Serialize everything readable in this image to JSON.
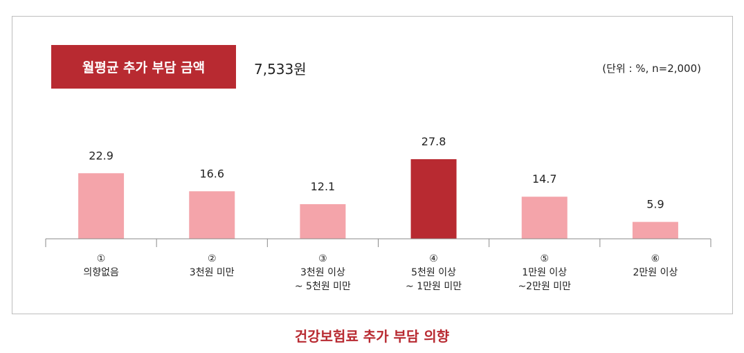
{
  "header": {
    "badge_label": "월평균 추가 부담 금액",
    "amount": "7,533원",
    "unit_note": "(단위 : %, n=2,000)"
  },
  "caption": "건강보험료 추가 부담 의향",
  "colors": {
    "highlight": "#b82a31",
    "bar": "#f4a4aa",
    "axis": "#8a8a8a"
  },
  "chart_data": {
    "type": "bar",
    "title": "",
    "xlabel": "",
    "ylabel": "",
    "categories": [
      [
        "①",
        "의향없음"
      ],
      [
        "②",
        "3천원 미만"
      ],
      [
        "③",
        "3천원 이상",
        "~ 5천원 미만"
      ],
      [
        "④",
        "5천원 이상",
        "~ 1만원 미만"
      ],
      [
        "⑤",
        "1만원 이상",
        "~2만원 미만"
      ],
      [
        "⑥",
        "2만원 이상"
      ]
    ],
    "values": [
      22.9,
      16.6,
      12.1,
      27.8,
      14.7,
      5.9
    ],
    "value_labels": [
      "22.9",
      "16.6",
      "12.1",
      "27.8",
      "14.7",
      "5.9"
    ],
    "highlight_index": 3,
    "ylim": [
      0,
      27.8
    ],
    "grid": false,
    "legend": "none"
  }
}
